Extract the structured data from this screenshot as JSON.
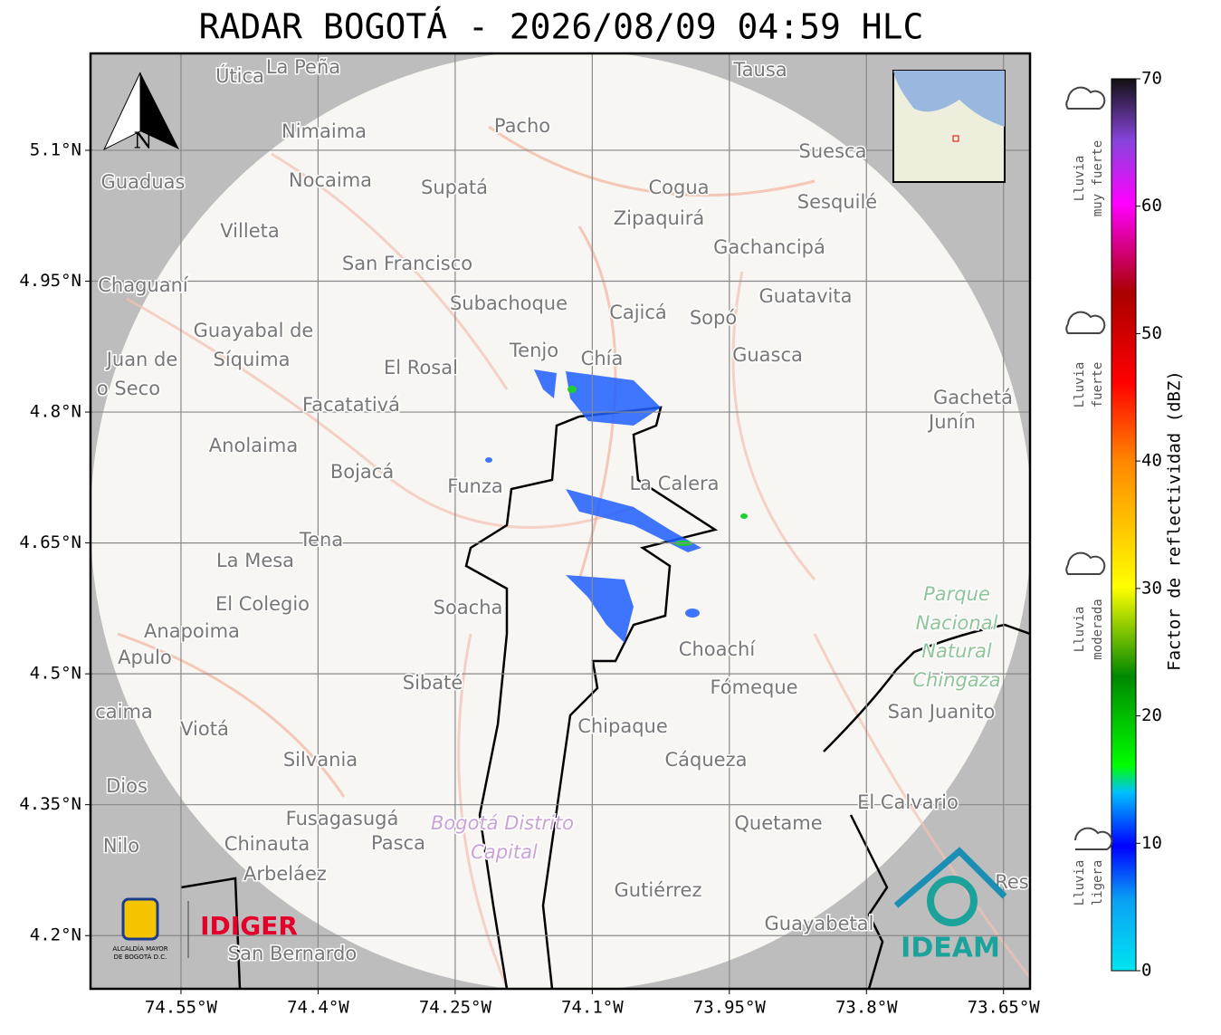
{
  "map": {
    "title": "RADAR BOGOTÁ - 2026/08/09 04:59 HLC",
    "north": "N",
    "xlim": [
      -74.649,
      -73.621
    ],
    "ylim": [
      4.139,
      5.211
    ],
    "xticks": [
      {
        "value": -74.55,
        "label": "74.55°W"
      },
      {
        "value": -74.4,
        "label": "74.4°W"
      },
      {
        "value": -74.25,
        "label": "74.25°W"
      },
      {
        "value": -74.1,
        "label": "74.1°W"
      },
      {
        "value": -73.95,
        "label": "73.95°W"
      },
      {
        "value": -73.8,
        "label": "73.8°W"
      },
      {
        "value": -73.65,
        "label": "73.65°W"
      }
    ],
    "yticks": [
      {
        "value": 5.1,
        "label": "5.1°N"
      },
      {
        "value": 4.95,
        "label": "4.95°N"
      },
      {
        "value": 4.8,
        "label": "4.8°N"
      },
      {
        "value": 4.65,
        "label": "4.65°N"
      },
      {
        "value": 4.5,
        "label": "4.5°N"
      },
      {
        "value": 4.35,
        "label": "4.35°N"
      },
      {
        "value": 4.2,
        "label": "4.2°N"
      }
    ],
    "places": [
      "Útica",
      "La Peña",
      "Tausa",
      "Pacho",
      "Nimaima",
      "Guaduas",
      "Nocaima",
      "Supatá",
      "Cogua",
      "Suesca",
      "Sesquilé",
      "Zipaquirá",
      "Villeta",
      "Gachancipá",
      "San Francisco",
      "Chaguaní",
      "Guatavita",
      "Subachoque",
      "Cajicá",
      "Sopó",
      "Guayabal de",
      "Síquima",
      "Juan de",
      "o Seco",
      "Tenjo",
      "Chía",
      "Guasca",
      "El Rosal",
      "Facatativá",
      "Gachetá",
      "Junín",
      "Anolaima",
      "Bojacá",
      "Funza",
      "La Calera",
      "Tena",
      "La Mesa",
      "El Colegio",
      "Soacha",
      "Parque",
      "Nacional",
      "Natural",
      "Chingaza",
      "Anapoima",
      "Apulo",
      "Choachí",
      "Fómeque",
      "Sibaté",
      "San Juanito",
      "caima",
      "Viotá",
      "Chipaque",
      "Silvania",
      "Cáqueza",
      "Dios",
      "El Calvario",
      "Fusagasugá",
      "Quetame",
      "Bogotá Distrito",
      "Capital",
      "Nilo",
      "Chinauta",
      "Pasca",
      "Arbeláez",
      "Gutiérrez",
      "Guayabetal",
      "San Bernardo",
      "Res"
    ],
    "logos": {
      "alcaldia": [
        "ALCALDÍA MAYOR",
        "DE BOGOTÁ D.C."
      ],
      "idiger": "IDIGER",
      "ideam": "IDEAM"
    }
  },
  "colorbar": {
    "label": "Factor de reflectividad (dBZ)",
    "lim": [
      0,
      70
    ],
    "ticks": [
      0,
      10,
      20,
      30,
      40,
      50,
      60,
      70
    ],
    "categories": [
      [
        "Lluvia",
        "muy fuerte"
      ],
      [
        "Lluvia",
        "fuerte"
      ],
      [
        "Lluvia",
        "moderada"
      ],
      [
        "Lluvia",
        "ligera"
      ]
    ]
  }
}
